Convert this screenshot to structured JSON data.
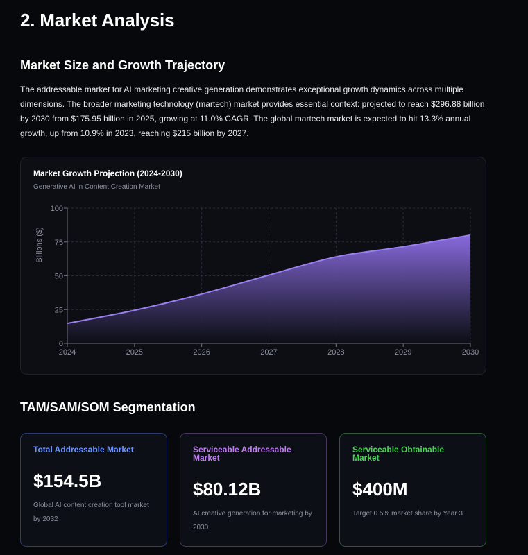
{
  "page_title": "2. Market Analysis",
  "section_growth": {
    "heading": "Market Size and Growth Trajectory",
    "paragraph": "The addressable market for AI marketing creative generation demonstrates exceptional growth dynamics across multiple dimensions. The broader marketing technology (martech) market provides essential context: projected to reach $296.88 billion by 2030 from $175.95 billion in 2025, growing at 11.0% CAGR. The global martech market is expected to hit 13.3% annual growth, up from 10.9% in 2023, reaching $215 billion by 2027."
  },
  "chart_data": {
    "type": "area",
    "title": "Market Growth Projection (2024-2030)",
    "subtitle": "Generative AI in Content Creation Market",
    "xlabel": "",
    "ylabel": "Billions ($)",
    "x": [
      "2024",
      "2025",
      "2026",
      "2027",
      "2028",
      "2029",
      "2030"
    ],
    "series": [
      {
        "values": [
          14.8,
          24.5,
          36.5,
          50.5,
          64.0,
          71.5,
          80.1
        ]
      }
    ],
    "ylim": [
      0,
      100
    ],
    "yticks": [
      "0",
      "25",
      "50",
      "75",
      "100"
    ],
    "grid": true,
    "colors": {
      "line": "#9a7ff0",
      "fill_top": "#8e6fe8",
      "fill_bottom": "#0c0e14"
    }
  },
  "section_segmentation": {
    "heading": "TAM/SAM/SOM Segmentation",
    "cards": [
      {
        "title": "Total Addressable Market",
        "value": "$154.5B",
        "description": "Global AI content creation tool market by 2032",
        "color": "#6f94ff"
      },
      {
        "title": "Serviceable Addressable Market",
        "value": "$80.12B",
        "description": "AI creative generation for marketing by 2030",
        "color": "#c07ff0"
      },
      {
        "title": "Serviceable Obtainable Market",
        "value": "$400M",
        "description": "Target 0.5% market share by Year 3",
        "color": "#4fd05a"
      }
    ]
  }
}
